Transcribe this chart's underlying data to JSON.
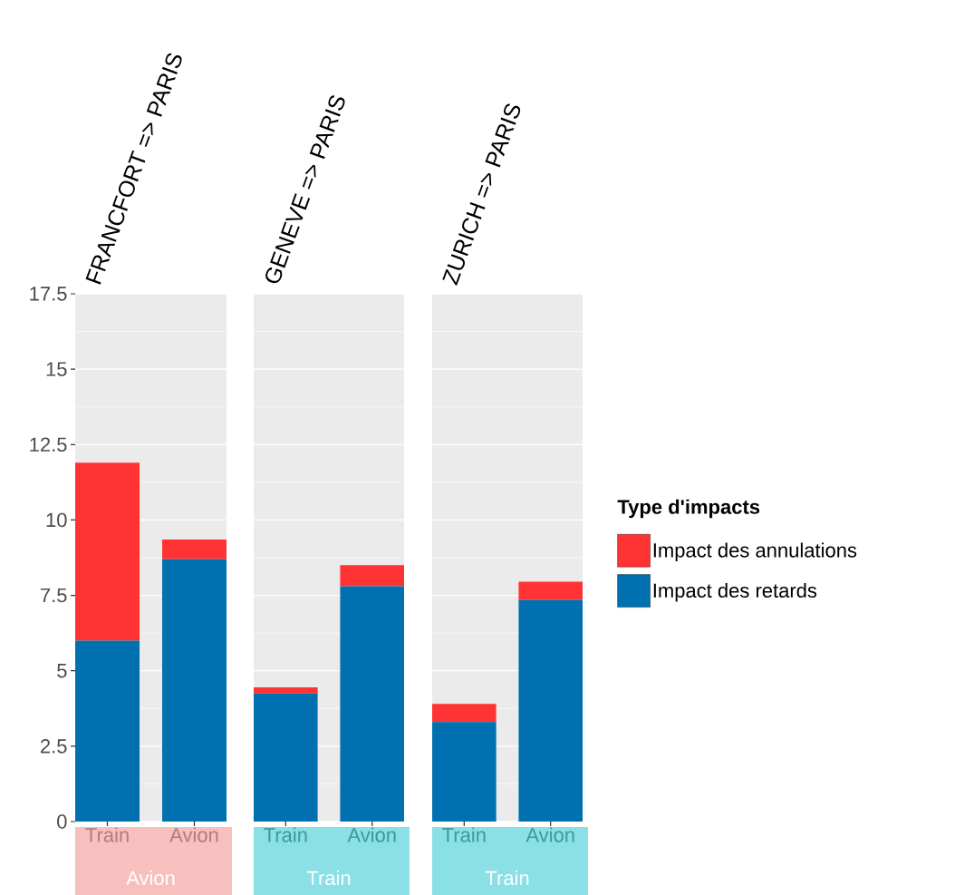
{
  "chart_data": [
    {
      "type": "bar",
      "title": "FRANCFORT => PARIS",
      "xlabel": "Avion",
      "categories": [
        "Train",
        "Avion"
      ],
      "stacked": true,
      "ylim": [
        0,
        17.5
      ],
      "yticks": [
        0,
        2.5,
        5,
        7.5,
        10,
        12.5,
        15,
        17.5
      ],
      "grid": "y",
      "legend": false,
      "series": [
        {
          "color": "#0070b0",
          "values": [
            6.0,
            8.7
          ]
        },
        {
          "color": "#ff3333",
          "values": [
            5.9,
            0.65
          ]
        }
      ]
    },
    {
      "type": "bar",
      "title": "GENEVE => PARIS",
      "xlabel": "Train",
      "categories": [
        "Train",
        "Avion"
      ],
      "stacked": true,
      "ylim": [
        0,
        17.5
      ],
      "yticks": [
        0,
        2.5,
        5,
        7.5,
        10,
        12.5,
        15,
        17.5
      ],
      "grid": "y",
      "legend": false,
      "tick_labels": "x",
      "series": [
        {
          "color": "#0070b0",
          "values": [
            4.25,
            7.8
          ]
        },
        {
          "color": "#ff3333",
          "values": [
            0.2,
            0.7
          ]
        }
      ]
    },
    {
      "type": "bar",
      "title": "ZURICH => PARIS",
      "xlabel": "Train",
      "categories": [
        "Train",
        "Avion"
      ],
      "stacked": true,
      "ylim": [
        0,
        17.5
      ],
      "yticks": [
        0,
        2.5,
        5,
        7.5,
        10,
        12.5,
        15,
        17.5
      ],
      "grid": "y",
      "legend": "right",
      "legend_title": "Type d'impacts",
      "tick_labels": "x",
      "series": [
        {
          "name": "Impact des retards",
          "color": "#0070b0",
          "values": [
            3.3,
            7.35
          ]
        },
        {
          "name": "Impact des annulations",
          "color": "#ff3333",
          "values": [
            0.6,
            0.6
          ]
        }
      ]
    }
  ]
}
